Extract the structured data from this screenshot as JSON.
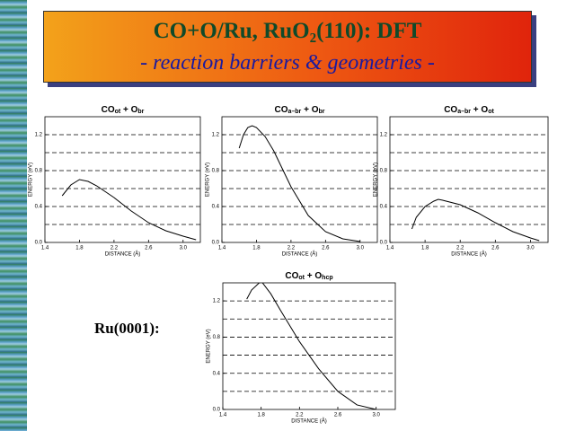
{
  "slide_title": "CO+O/Ru, RuO₂(110): DFT",
  "slide_subtitle": "- reaction barriers & geometries -",
  "side_label": "Ru(0001):",
  "chart_data": [
    {
      "type": "line",
      "title": [
        {
          "text": "CO"
        },
        {
          "sub": "ot"
        },
        {
          "text": " + O"
        },
        {
          "sub": "br"
        }
      ],
      "x_label": "DISTANCE (Å)",
      "y_label": "ENERGY (eV)",
      "x": [
        1.6,
        1.7,
        1.8,
        1.9,
        2.0,
        2.2,
        2.4,
        2.6,
        2.8,
        3.0,
        3.15
      ],
      "values": [
        0.52,
        0.64,
        0.7,
        0.68,
        0.63,
        0.5,
        0.35,
        0.22,
        0.13,
        0.07,
        0.03
      ],
      "color": "#000000",
      "xlim": [
        1.4,
        3.2
      ],
      "xticks": [
        1.4,
        1.8,
        2.2,
        2.6,
        {
          "value": 3.0,
          "label": "3.0"
        }
      ],
      "ylim": [
        0,
        1.4
      ],
      "yticks": [
        {
          "value": 0,
          "label": "0.0"
        },
        0.4,
        0.8,
        1.2
      ],
      "ygrid": [
        0.2,
        0.4,
        0.6,
        0.8,
        1.0,
        1.2
      ]
    },
    {
      "type": "line",
      "title": [
        {
          "text": "CO"
        },
        {
          "sub": "a–br"
        },
        {
          "text": " + O"
        },
        {
          "sub": "br"
        }
      ],
      "x_label": "DISTANCE (Å)",
      "y_label": "ENERGY (eV)",
      "x": [
        1.6,
        1.65,
        1.7,
        1.75,
        1.8,
        1.9,
        2.0,
        2.1,
        2.2,
        2.4,
        2.6,
        2.8,
        3.0
      ],
      "values": [
        1.05,
        1.2,
        1.28,
        1.3,
        1.28,
        1.18,
        1.02,
        0.82,
        0.62,
        0.3,
        0.12,
        0.04,
        0.01
      ],
      "color": "#000000",
      "xlim": [
        1.4,
        3.2
      ],
      "xticks": [
        1.4,
        1.8,
        2.2,
        2.6,
        {
          "value": 3.0,
          "label": "3.0"
        }
      ],
      "ylim": [
        0,
        1.4
      ],
      "yticks": [
        {
          "value": 0,
          "label": "0.0"
        },
        0.4,
        0.8,
        1.2
      ],
      "ygrid": [
        0.2,
        0.4,
        0.6,
        0.8,
        1.0,
        1.2
      ]
    },
    {
      "type": "line",
      "title": [
        {
          "text": "CO"
        },
        {
          "sub": "a–br"
        },
        {
          "text": " + O"
        },
        {
          "sub": "ot"
        }
      ],
      "x_label": "DISTANCE (Å)",
      "y_label": "ENERGY (eV)",
      "x": [
        1.65,
        1.7,
        1.8,
        1.9,
        1.95,
        2.0,
        2.2,
        2.4,
        2.6,
        2.8,
        3.0,
        3.1
      ],
      "values": [
        0.15,
        0.28,
        0.4,
        0.46,
        0.48,
        0.47,
        0.42,
        0.33,
        0.22,
        0.12,
        0.05,
        0.02
      ],
      "color": "#000000",
      "xlim": [
        1.4,
        3.2
      ],
      "xticks": [
        1.4,
        1.8,
        2.2,
        2.6,
        {
          "value": 3.0,
          "label": "3.0"
        }
      ],
      "ylim": [
        0,
        1.4
      ],
      "yticks": [
        {
          "value": 0,
          "label": "0.0"
        },
        0.4,
        0.8,
        1.2
      ],
      "ygrid": [
        0.2,
        0.4,
        0.6,
        0.8,
        1.0,
        1.2
      ]
    },
    {
      "type": "line",
      "title": [
        {
          "text": "CO"
        },
        {
          "sub": "ot"
        },
        {
          "text": " + O"
        },
        {
          "sub": "hcp"
        }
      ],
      "x_label": "DISTANCE (Å)",
      "y_label": "ENERGY (eV)",
      "x": [
        1.65,
        1.7,
        1.8,
        1.9,
        2.0,
        2.2,
        2.4,
        2.6,
        2.8,
        3.0
      ],
      "values": [
        1.22,
        1.32,
        1.42,
        1.28,
        1.1,
        0.75,
        0.45,
        0.2,
        0.05,
        0.0
      ],
      "color": "#000000",
      "xlim": [
        1.4,
        3.2
      ],
      "xticks": [
        1.4,
        1.8,
        2.2,
        2.6,
        {
          "value": 3.0,
          "label": "3.0"
        }
      ],
      "ylim": [
        0,
        1.4
      ],
      "yticks": [
        {
          "value": 0,
          "label": "0.0"
        },
        0.4,
        0.8,
        1.2
      ],
      "ygrid": [
        0.2,
        0.4,
        0.6,
        0.8,
        1.0,
        1.2
      ]
    }
  ]
}
